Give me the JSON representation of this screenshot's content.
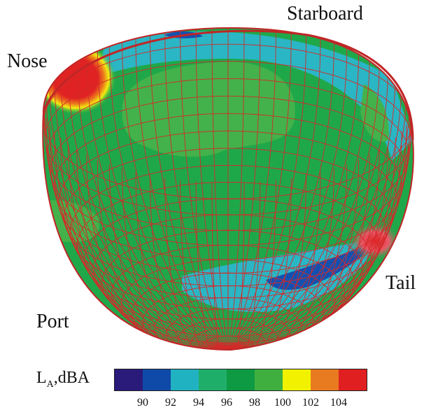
{
  "labels": {
    "nose": "Nose",
    "starboard": "Starboard",
    "tail": "Tail",
    "port": "Port"
  },
  "legend": {
    "title_main": "L",
    "title_sub": "A",
    "title_rest": ",dBA",
    "colors": [
      "#2a1a7a",
      "#0f4aa8",
      "#20b2c0",
      "#1fae6a",
      "#0e9a42",
      "#3fb040",
      "#f2f200",
      "#e87a20",
      "#e02020"
    ],
    "ticks": [
      "90",
      "92",
      "94",
      "96",
      "98",
      "100",
      "102",
      "104"
    ]
  },
  "colors": {
    "mesh": "#d42a2a",
    "base_green": "#1fa84a",
    "light_green": "#43b24a",
    "cyan": "#2ab6c4",
    "blue": "#1450b0",
    "yellow": "#f2ec10",
    "orange": "#ec7a1c",
    "red": "#e02222"
  }
}
